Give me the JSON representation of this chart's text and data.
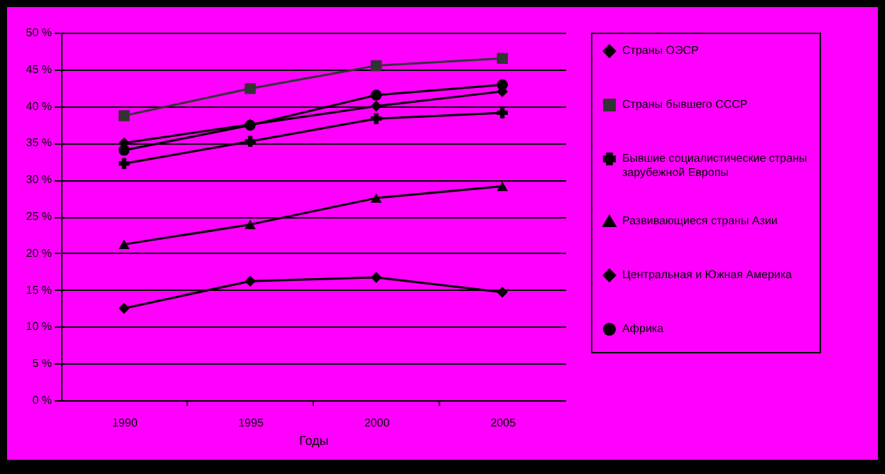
{
  "chart_data": {
    "type": "line",
    "xlabel": "Годы",
    "categories": [
      "1990",
      "1995",
      "2000",
      "2005"
    ],
    "ylim": [
      0,
      50
    ],
    "yticks": [
      {
        "value": 0,
        "label": "0 %"
      },
      {
        "value": 5,
        "label": "5 %"
      },
      {
        "value": 10,
        "label": "10 %"
      },
      {
        "value": 15,
        "label": "15 %"
      },
      {
        "value": 20,
        "label": "20 %"
      },
      {
        "value": 25,
        "label": "25 %"
      },
      {
        "value": 30,
        "label": "30 %"
      },
      {
        "value": 35,
        "label": "35 %"
      },
      {
        "value": 40,
        "label": "40 %"
      },
      {
        "value": 45,
        "label": "45 %"
      },
      {
        "value": 50,
        "label": "50 %"
      }
    ],
    "grid": "y",
    "legend": "right",
    "series": [
      {
        "name": "Страны ОЭСР",
        "color": "#000000",
        "marker": "diamond",
        "values": [
          35,
          37.5,
          40,
          42
        ]
      },
      {
        "name": "Страны бывшего СССР",
        "color": "#333333",
        "marker": "square",
        "values": [
          38.7,
          42.4,
          45.5,
          46.5
        ]
      },
      {
        "name": "Бывшие социалистические страны зарубежной Европы",
        "color": "#000000",
        "marker": "cross",
        "values": [
          32.2,
          35.2,
          38.3,
          39.1
        ]
      },
      {
        "name": "Развивающиеся страны Азии",
        "color": "#000000",
        "marker": "triangle",
        "values": [
          21.2,
          23.9,
          27.5,
          29.1
        ]
      },
      {
        "name": "Центральная и Южная Америка",
        "color": "#000000",
        "marker": "diamond",
        "values": [
          12.5,
          16.2,
          16.7,
          14.7
        ]
      },
      {
        "name": "Африка",
        "color": "#000000",
        "marker": "circle",
        "values": [
          34,
          37.4,
          41.5,
          42.9
        ]
      }
    ]
  }
}
